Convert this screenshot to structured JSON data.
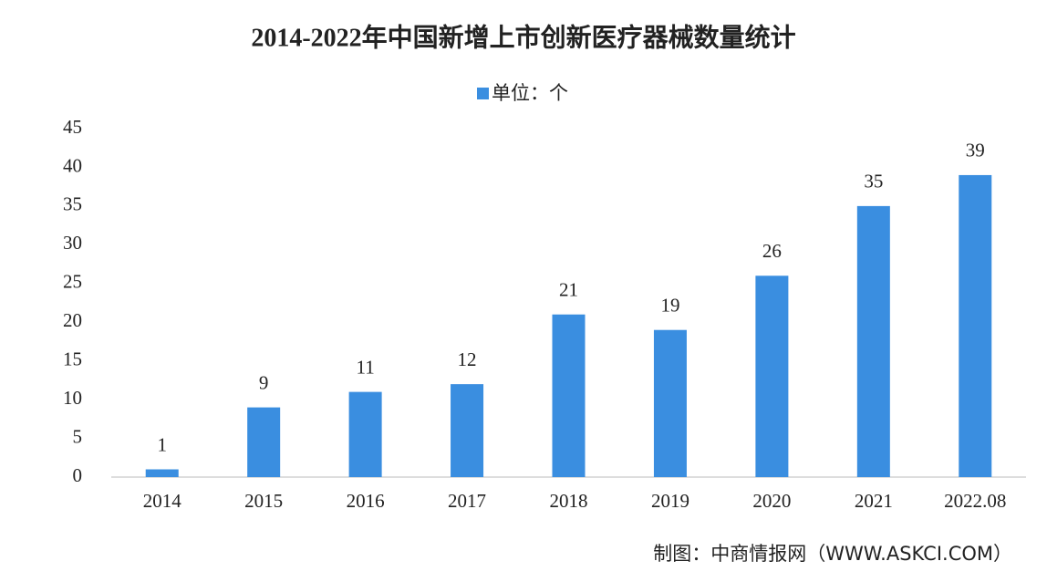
{
  "chart_data": {
    "type": "bar",
    "title": "2014-2022年中国新增上市创新医疗器械数量统计",
    "categories": [
      "2014",
      "2015",
      "2016",
      "2017",
      "2018",
      "2019",
      "2020",
      "2021",
      "2022.08"
    ],
    "series": [
      {
        "name": "单位：个",
        "color": "#3a8ee0",
        "values": [
          1,
          9,
          11,
          12,
          21,
          19,
          26,
          35,
          39
        ]
      }
    ],
    "ylim": [
      0,
      45
    ],
    "yticks": [
      0,
      5,
      10,
      15,
      20,
      25,
      30,
      35,
      40,
      45
    ],
    "grid": false,
    "legend": "top",
    "source": "制图：中商情报网（WWW.ASKCI.COM）"
  }
}
